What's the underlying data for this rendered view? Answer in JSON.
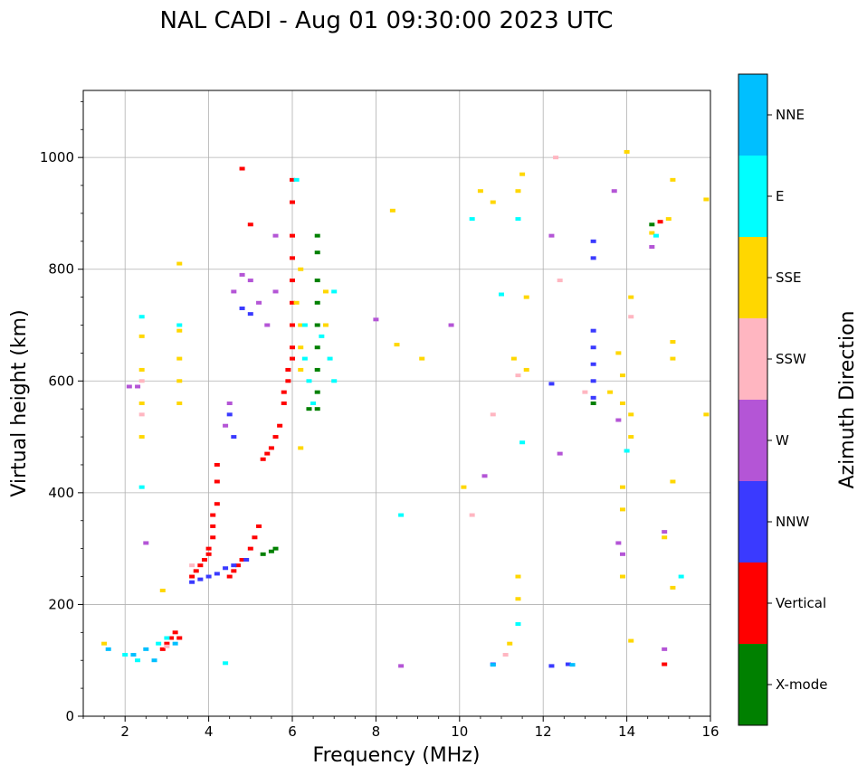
{
  "chart_data": {
    "type": "scatter",
    "title": "NAL CADI - Aug 01 09:30:00 2023 UTC",
    "xlabel": "Frequency (MHz)",
    "ylabel": "Virtual height (km)",
    "xlim": [
      1,
      16
    ],
    "ylim": [
      0,
      1120
    ],
    "xticks": [
      2,
      4,
      6,
      8,
      10,
      12,
      14,
      16
    ],
    "yticks": [
      0,
      200,
      400,
      600,
      800,
      1000
    ],
    "grid": true,
    "colorbar": {
      "label": "Azimuth Direction",
      "categories": [
        {
          "name": "X-mode",
          "color": "#008000"
        },
        {
          "name": "Vertical",
          "color": "#ff0000"
        },
        {
          "name": "NNW",
          "color": "#3a3aff"
        },
        {
          "name": "W",
          "color": "#b455d6"
        },
        {
          "name": "SSW",
          "color": "#ffb6c1"
        },
        {
          "name": "SSE",
          "color": "#ffd700"
        },
        {
          "name": "E",
          "color": "#00ffff"
        },
        {
          "name": "NNE",
          "color": "#00bfff"
        }
      ]
    },
    "series": [
      {
        "name": "Vertical",
        "points": [
          [
            2.9,
            120
          ],
          [
            3.0,
            130
          ],
          [
            3.1,
            140
          ],
          [
            3.2,
            150
          ],
          [
            3.3,
            140
          ],
          [
            3.6,
            250
          ],
          [
            3.7,
            260
          ],
          [
            3.8,
            270
          ],
          [
            3.9,
            280
          ],
          [
            4.0,
            290
          ],
          [
            4.0,
            300
          ],
          [
            4.1,
            320
          ],
          [
            4.1,
            340
          ],
          [
            4.1,
            360
          ],
          [
            4.2,
            380
          ],
          [
            4.2,
            420
          ],
          [
            4.2,
            450
          ],
          [
            4.5,
            250
          ],
          [
            4.6,
            260
          ],
          [
            4.7,
            270
          ],
          [
            4.8,
            280
          ],
          [
            5.0,
            300
          ],
          [
            5.1,
            320
          ],
          [
            5.2,
            340
          ],
          [
            5.3,
            460
          ],
          [
            5.4,
            470
          ],
          [
            5.5,
            480
          ],
          [
            5.6,
            500
          ],
          [
            5.7,
            520
          ],
          [
            5.8,
            560
          ],
          [
            5.8,
            580
          ],
          [
            5.9,
            600
          ],
          [
            5.9,
            620
          ],
          [
            6.0,
            640
          ],
          [
            6.0,
            660
          ],
          [
            6.0,
            700
          ],
          [
            6.0,
            740
          ],
          [
            6.0,
            780
          ],
          [
            6.0,
            820
          ],
          [
            6.0,
            860
          ],
          [
            6.0,
            920
          ],
          [
            6.0,
            960
          ],
          [
            5.0,
            880
          ],
          [
            4.8,
            980
          ],
          [
            14.8,
            885
          ],
          [
            14.9,
            93
          ]
        ]
      },
      {
        "name": "X-mode",
        "points": [
          [
            5.3,
            290
          ],
          [
            5.5,
            295
          ],
          [
            5.6,
            300
          ],
          [
            6.6,
            860
          ],
          [
            6.6,
            830
          ],
          [
            6.6,
            780
          ],
          [
            6.6,
            740
          ],
          [
            6.6,
            700
          ],
          [
            6.6,
            660
          ],
          [
            6.6,
            620
          ],
          [
            6.6,
            580
          ],
          [
            6.6,
            550
          ],
          [
            6.4,
            550
          ],
          [
            13.2,
            560
          ],
          [
            14.6,
            880
          ]
        ]
      },
      {
        "name": "NNW",
        "points": [
          [
            3.6,
            240
          ],
          [
            3.8,
            245
          ],
          [
            4.0,
            250
          ],
          [
            4.2,
            255
          ],
          [
            4.4,
            265
          ],
          [
            4.6,
            270
          ],
          [
            4.9,
            280
          ],
          [
            4.5,
            540
          ],
          [
            4.6,
            500
          ],
          [
            4.8,
            730
          ],
          [
            5.0,
            720
          ],
          [
            13.2,
            850
          ],
          [
            13.2,
            820
          ],
          [
            13.2,
            690
          ],
          [
            13.2,
            660
          ],
          [
            13.2,
            630
          ],
          [
            13.2,
            600
          ],
          [
            13.2,
            570
          ],
          [
            12.2,
            595
          ],
          [
            12.6,
            93
          ],
          [
            10.8,
            93
          ],
          [
            12.2,
            90
          ]
        ]
      },
      {
        "name": "W",
        "points": [
          [
            4.6,
            760
          ],
          [
            4.8,
            790
          ],
          [
            5.0,
            780
          ],
          [
            5.2,
            740
          ],
          [
            5.4,
            700
          ],
          [
            5.6,
            760
          ],
          [
            5.6,
            860
          ],
          [
            4.4,
            520
          ],
          [
            4.5,
            560
          ],
          [
            2.1,
            590
          ],
          [
            2.3,
            590
          ],
          [
            2.5,
            310
          ],
          [
            8.0,
            710
          ],
          [
            8.6,
            90
          ],
          [
            9.8,
            700
          ],
          [
            10.6,
            430
          ],
          [
            12.2,
            860
          ],
          [
            12.4,
            470
          ],
          [
            13.8,
            530
          ],
          [
            13.8,
            310
          ],
          [
            13.9,
            290
          ],
          [
            14.6,
            840
          ],
          [
            14.9,
            330
          ],
          [
            14.9,
            120
          ],
          [
            13.7,
            940
          ]
        ]
      },
      {
        "name": "SSW",
        "points": [
          [
            2.4,
            540
          ],
          [
            2.4,
            600
          ],
          [
            3.0,
            125
          ],
          [
            3.6,
            270
          ],
          [
            10.3,
            360
          ],
          [
            10.8,
            540
          ],
          [
            11.1,
            110
          ],
          [
            11.4,
            610
          ],
          [
            12.3,
            1000
          ],
          [
            12.4,
            780
          ],
          [
            13.0,
            580
          ],
          [
            14.1,
            715
          ]
        ]
      },
      {
        "name": "SSE",
        "points": [
          [
            1.5,
            130
          ],
          [
            2.4,
            500
          ],
          [
            2.4,
            560
          ],
          [
            2.4,
            620
          ],
          [
            2.4,
            680
          ],
          [
            3.3,
            560
          ],
          [
            3.3,
            600
          ],
          [
            3.3,
            640
          ],
          [
            3.3,
            690
          ],
          [
            3.3,
            810
          ],
          [
            2.9,
            225
          ],
          [
            6.1,
            740
          ],
          [
            6.2,
            700
          ],
          [
            6.2,
            660
          ],
          [
            6.2,
            620
          ],
          [
            6.2,
            800
          ],
          [
            6.2,
            480
          ],
          [
            6.8,
            700
          ],
          [
            6.8,
            760
          ],
          [
            8.4,
            905
          ],
          [
            8.5,
            665
          ],
          [
            9.1,
            640
          ],
          [
            10.1,
            410
          ],
          [
            10.5,
            940
          ],
          [
            10.8,
            920
          ],
          [
            11.4,
            940
          ],
          [
            11.5,
            970
          ],
          [
            11.3,
            640
          ],
          [
            11.4,
            250
          ],
          [
            11.4,
            210
          ],
          [
            11.2,
            130
          ],
          [
            11.6,
            750
          ],
          [
            11.6,
            620
          ],
          [
            13.8,
            650
          ],
          [
            13.9,
            610
          ],
          [
            13.9,
            560
          ],
          [
            14.1,
            540
          ],
          [
            14.1,
            500
          ],
          [
            14.1,
            750
          ],
          [
            14.0,
            1010
          ],
          [
            13.6,
            580
          ],
          [
            15.1,
            670
          ],
          [
            15.1,
            640
          ],
          [
            15.1,
            420
          ],
          [
            15.1,
            960
          ],
          [
            15.9,
            925
          ],
          [
            15.9,
            540
          ],
          [
            14.6,
            865
          ],
          [
            15.0,
            890
          ],
          [
            14.1,
            135
          ],
          [
            15.1,
            230
          ],
          [
            14.9,
            320
          ],
          [
            13.9,
            370
          ],
          [
            13.9,
            410
          ],
          [
            13.9,
            250
          ]
        ]
      },
      {
        "name": "E",
        "points": [
          [
            2.0,
            110
          ],
          [
            2.3,
            100
          ],
          [
            2.8,
            130
          ],
          [
            3.0,
            140
          ],
          [
            2.4,
            410
          ],
          [
            2.4,
            715
          ],
          [
            3.3,
            700
          ],
          [
            6.1,
            960
          ],
          [
            6.3,
            700
          ],
          [
            6.3,
            640
          ],
          [
            6.4,
            600
          ],
          [
            6.5,
            560
          ],
          [
            6.7,
            680
          ],
          [
            6.9,
            640
          ],
          [
            7.0,
            600
          ],
          [
            7.0,
            760
          ],
          [
            8.6,
            360
          ],
          [
            10.3,
            890
          ],
          [
            11.0,
            755
          ],
          [
            11.4,
            890
          ],
          [
            11.5,
            490
          ],
          [
            11.4,
            165
          ],
          [
            14.0,
            475
          ],
          [
            15.3,
            250
          ],
          [
            14.7,
            860
          ],
          [
            4.4,
            95
          ]
        ]
      },
      {
        "name": "NNE",
        "points": [
          [
            1.6,
            120
          ],
          [
            2.2,
            110
          ],
          [
            2.5,
            120
          ],
          [
            2.7,
            100
          ],
          [
            3.2,
            130
          ],
          [
            12.7,
            92
          ],
          [
            10.8,
            92
          ]
        ]
      }
    ]
  }
}
